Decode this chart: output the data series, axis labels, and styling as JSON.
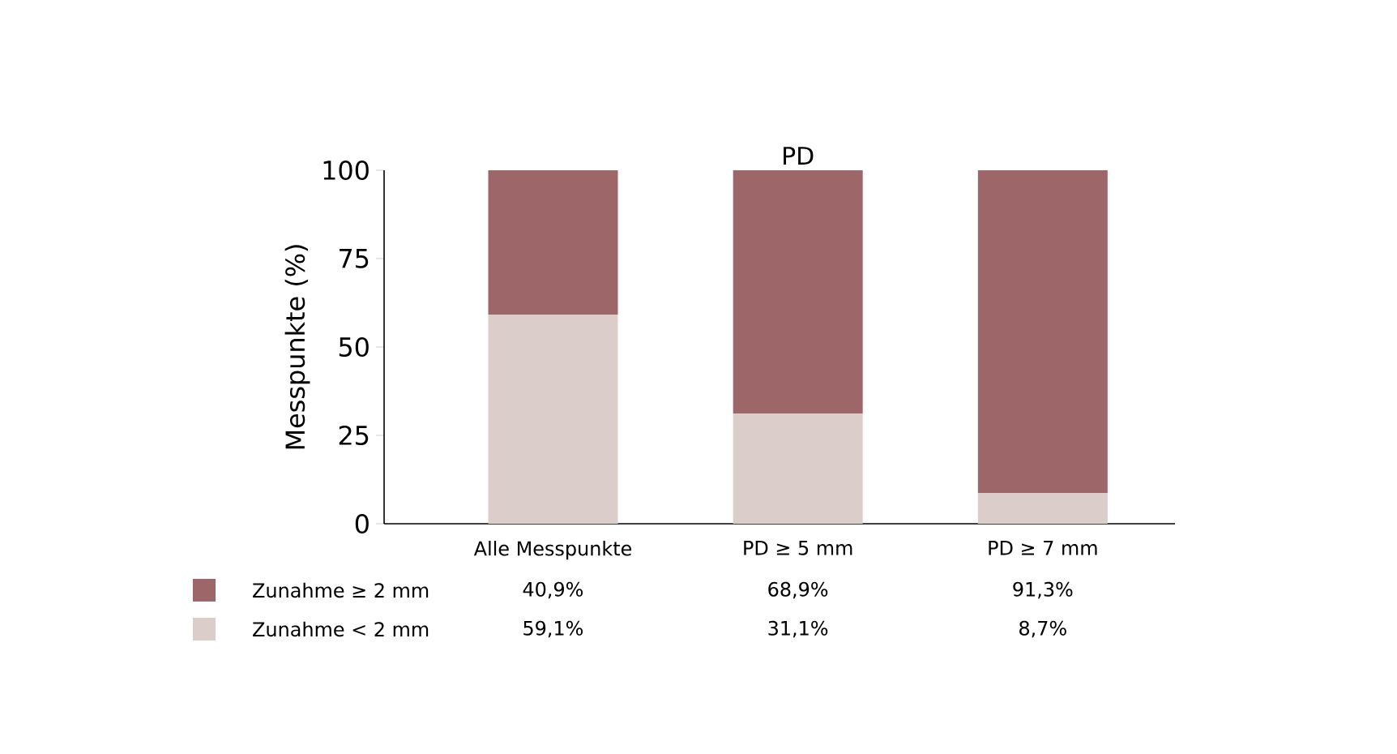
{
  "chart_data": {
    "type": "bar",
    "title": "PD",
    "ylabel": "Messpunkte (%)",
    "categories": [
      "Alle Messpunkte",
      "PD ≥ 5 mm",
      "PD ≥ 7 mm"
    ],
    "stacked": true,
    "ylim": [
      0,
      100
    ],
    "yticks": [
      0,
      25,
      50,
      75,
      100
    ],
    "grid": false,
    "legend": "bottom",
    "series": [
      {
        "name": "Zunahme < 2 mm",
        "color": "#dbcdc9",
        "values": [
          59.1,
          31.1,
          8.7
        ],
        "value_labels": [
          "59,1%",
          "31,1%",
          "8,7%"
        ]
      },
      {
        "name": "Zunahme ≥ 2 mm",
        "color": "#9d6669",
        "values": [
          40.9,
          68.9,
          91.3
        ],
        "value_labels": [
          "40,9%",
          "68,9%",
          "91,3%"
        ]
      }
    ]
  }
}
